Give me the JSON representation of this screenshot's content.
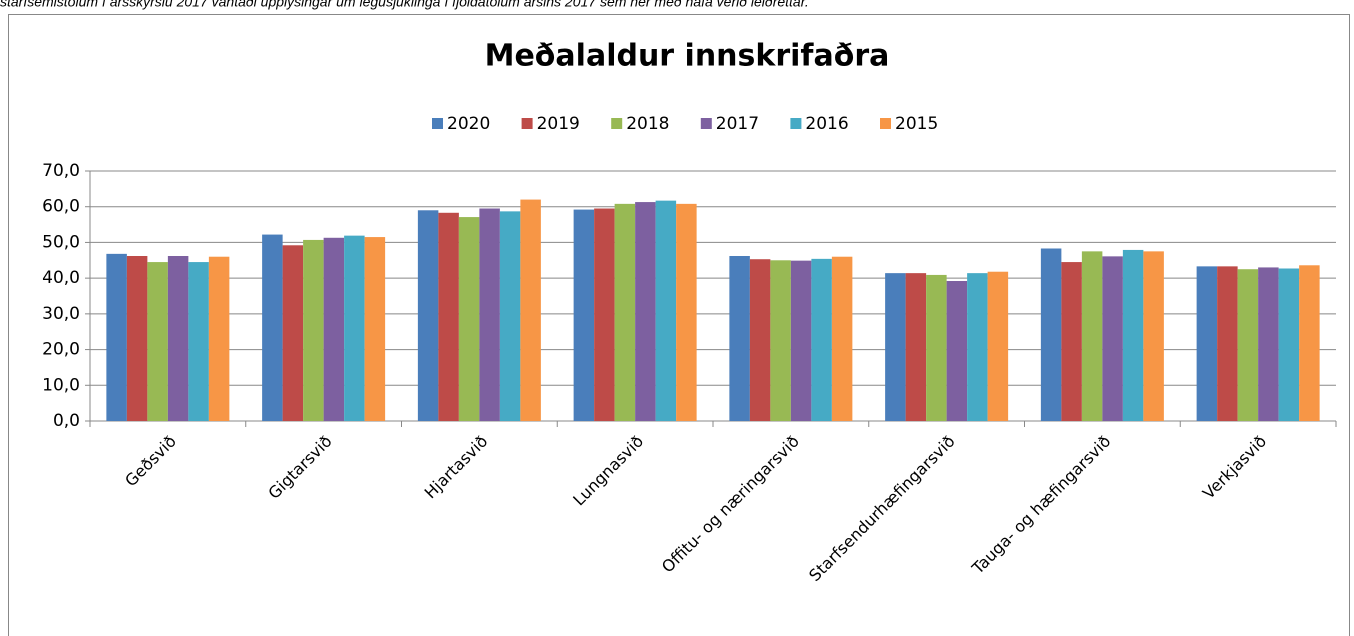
{
  "note": "starfsemistölum í ársskýrslu 2017 vantaði upplýsingar um legusjúklinga í fjöldatölum ársins 2017 sem hér með hafa verið leiðréttar.",
  "chart_data": {
    "type": "bar",
    "title": "Meðalaldur innskrifaðra",
    "categories": [
      "Geðsvið",
      "Gigtarsvið",
      "Hjartasvið",
      "Lungnasvið",
      "Offitu- og næringarsvið",
      "Starfsendurhæfingarsvið",
      "Tauga- og hæfingarsvið",
      "Verkjasvið"
    ],
    "series": [
      {
        "name": "2020",
        "color": "#4a7ebb",
        "values": [
          46.8,
          52.2,
          59.0,
          59.2,
          46.2,
          41.4,
          48.3,
          43.3
        ]
      },
      {
        "name": "2019",
        "color": "#be4b48",
        "values": [
          46.2,
          49.2,
          58.3,
          59.5,
          45.3,
          41.4,
          44.5,
          43.3
        ]
      },
      {
        "name": "2018",
        "color": "#98b954",
        "values": [
          44.5,
          50.7,
          57.1,
          60.8,
          45.0,
          40.9,
          47.5,
          42.5
        ]
      },
      {
        "name": "2017",
        "color": "#7d60a0",
        "values": [
          46.2,
          51.3,
          59.5,
          61.3,
          44.9,
          39.2,
          46.1,
          43.0
        ]
      },
      {
        "name": "2016",
        "color": "#46aac5",
        "values": [
          44.5,
          51.9,
          58.7,
          61.7,
          45.4,
          41.4,
          47.9,
          42.7
        ]
      },
      {
        "name": "2015",
        "color": "#f79646",
        "values": [
          46.0,
          51.5,
          62.0,
          60.8,
          46.0,
          41.8,
          47.5,
          43.6
        ]
      }
    ],
    "ylim": [
      0,
      70
    ],
    "yticks": [
      {
        "value": 0,
        "label": "0,0"
      },
      {
        "value": 10,
        "label": "10,0"
      },
      {
        "value": 20,
        "label": "20,0"
      },
      {
        "value": 30,
        "label": "30,0"
      },
      {
        "value": 40,
        "label": "40,0"
      },
      {
        "value": 50,
        "label": "50,0"
      },
      {
        "value": 60,
        "label": "60,0"
      },
      {
        "value": 70,
        "label": "70,0"
      }
    ],
    "grid": true,
    "legend": "top"
  }
}
